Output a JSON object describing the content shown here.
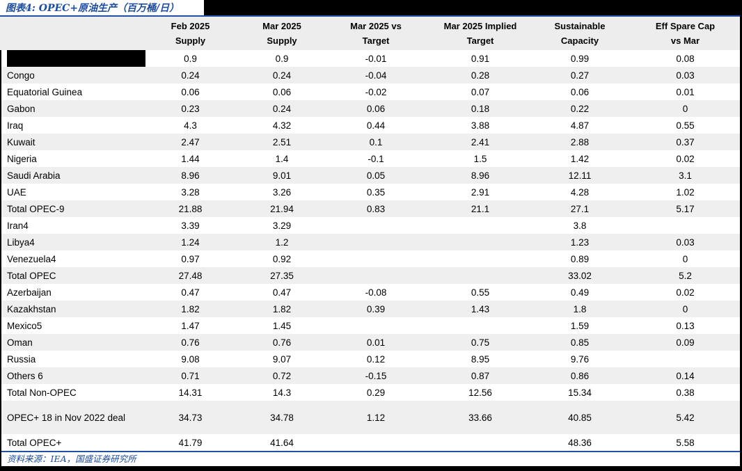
{
  "title": "图表4: OPEC+原油生产（百万桶/日）",
  "source_note": "资料来源：IEA，国盛证券研究所",
  "colors": {
    "accent_blue_text": "#1B4CA1",
    "rule_blue": "#1F52A5",
    "header_bg": "#EDEDED",
    "row_alt_bg": "#EFEFEF",
    "redaction_black": "#000000"
  },
  "table": {
    "row_header_label": "",
    "columns": [
      {
        "label": "Feb 2025\nSupply"
      },
      {
        "label": "Mar 2025\nSupply"
      },
      {
        "label": "Mar 2025 vs\nTarget"
      },
      {
        "label": "Mar 2025 Implied\nTarget"
      },
      {
        "label": "Sustainable\nCapacity"
      },
      {
        "label": "Eff Spare Cap\nvs Mar"
      }
    ],
    "rows": [
      {
        "label": "",
        "redacted": true,
        "tall": false,
        "values": [
          "0.9",
          "0.9",
          "-0.01",
          "0.91",
          "0.99",
          "0.08"
        ]
      },
      {
        "label": "Congo",
        "redacted": false,
        "tall": false,
        "values": [
          "0.24",
          "0.24",
          "-0.04",
          "0.28",
          "0.27",
          "0.03"
        ]
      },
      {
        "label": "Equatorial Guinea",
        "redacted": false,
        "tall": false,
        "values": [
          "0.06",
          "0.06",
          "-0.02",
          "0.07",
          "0.06",
          "0.01"
        ]
      },
      {
        "label": "Gabon",
        "redacted": false,
        "tall": false,
        "values": [
          "0.23",
          "0.24",
          "0.06",
          "0.18",
          "0.22",
          "0"
        ]
      },
      {
        "label": "Iraq",
        "redacted": false,
        "tall": false,
        "values": [
          "4.3",
          "4.32",
          "0.44",
          "3.88",
          "4.87",
          "0.55"
        ]
      },
      {
        "label": "Kuwait",
        "redacted": false,
        "tall": false,
        "values": [
          "2.47",
          "2.51",
          "0.1",
          "2.41",
          "2.88",
          "0.37"
        ]
      },
      {
        "label": "Nigeria",
        "redacted": false,
        "tall": false,
        "values": [
          "1.44",
          "1.4",
          "-0.1",
          "1.5",
          "1.42",
          "0.02"
        ]
      },
      {
        "label": "Saudi Arabia",
        "redacted": false,
        "tall": false,
        "values": [
          "8.96",
          "9.01",
          "0.05",
          "8.96",
          "12.11",
          "3.1"
        ]
      },
      {
        "label": "UAE",
        "redacted": false,
        "tall": false,
        "values": [
          "3.28",
          "3.26",
          "0.35",
          "2.91",
          "4.28",
          "1.02"
        ]
      },
      {
        "label": "Total OPEC-9",
        "redacted": false,
        "tall": false,
        "values": [
          "21.88",
          "21.94",
          "0.83",
          "21.1",
          "27.1",
          "5.17"
        ]
      },
      {
        "label": "Iran4",
        "redacted": false,
        "tall": false,
        "values": [
          "3.39",
          "3.29",
          "",
          "",
          "3.8",
          ""
        ]
      },
      {
        "label": "Libya4",
        "redacted": false,
        "tall": false,
        "values": [
          "1.24",
          "1.2",
          "",
          "",
          "1.23",
          "0.03"
        ]
      },
      {
        "label": "Venezuela4",
        "redacted": false,
        "tall": false,
        "values": [
          "0.97",
          "0.92",
          "",
          "",
          "0.89",
          "0"
        ]
      },
      {
        "label": "Total OPEC",
        "redacted": false,
        "tall": false,
        "values": [
          "27.48",
          "27.35",
          "",
          "",
          "33.02",
          "5.2"
        ]
      },
      {
        "label": "Azerbaijan",
        "redacted": false,
        "tall": false,
        "values": [
          "0.47",
          "0.47",
          "-0.08",
          "0.55",
          "0.49",
          "0.02"
        ]
      },
      {
        "label": "Kazakhstan",
        "redacted": false,
        "tall": false,
        "values": [
          "1.82",
          "1.82",
          "0.39",
          "1.43",
          "1.8",
          "0"
        ]
      },
      {
        "label": "Mexico5",
        "redacted": false,
        "tall": false,
        "values": [
          "1.47",
          "1.45",
          "",
          "",
          "1.59",
          "0.13"
        ]
      },
      {
        "label": "Oman",
        "redacted": false,
        "tall": false,
        "values": [
          "0.76",
          "0.76",
          "0.01",
          "0.75",
          "0.85",
          "0.09"
        ]
      },
      {
        "label": "Russia",
        "redacted": false,
        "tall": false,
        "values": [
          "9.08",
          "9.07",
          "0.12",
          "8.95",
          "9.76",
          ""
        ]
      },
      {
        "label": "Others 6",
        "redacted": false,
        "tall": false,
        "values": [
          "0.71",
          "0.72",
          "-0.15",
          "0.87",
          "0.86",
          "0.14"
        ]
      },
      {
        "label": "Total Non-OPEC",
        "redacted": false,
        "tall": false,
        "values": [
          "14.31",
          "14.3",
          "0.29",
          "12.56",
          "15.34",
          "0.38"
        ]
      },
      {
        "label": "OPEC+ 18 in Nov 2022 deal",
        "redacted": false,
        "tall": true,
        "values": [
          "34.73",
          "34.78",
          "1.12",
          "33.66",
          "40.85",
          "5.42"
        ]
      },
      {
        "label": "Total OPEC+",
        "redacted": false,
        "tall": false,
        "values": [
          "41.79",
          "41.64",
          "",
          "",
          "48.36",
          "5.58"
        ]
      }
    ]
  }
}
